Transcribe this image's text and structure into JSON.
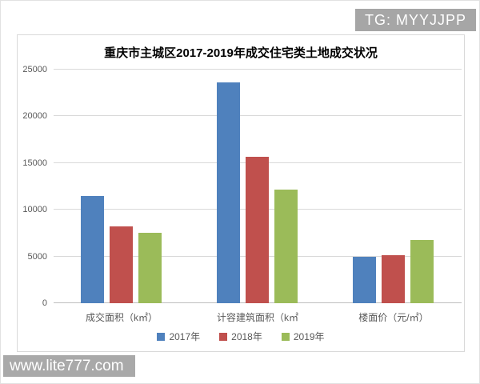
{
  "watermarks": {
    "top_right": "TG: MYYJJPP",
    "bottom_left": "www.lite777.com"
  },
  "chart_data": {
    "type": "bar",
    "title": "重庆市主城区2017-2019年成交住宅类土地成交状况",
    "categories": [
      "成交面积（k㎡）",
      "计容建筑面积（k㎡",
      "楼面价（元/㎡）"
    ],
    "series": [
      {
        "name": "2017年",
        "color": "#4f81bd",
        "values": [
          11500,
          23600,
          4950
        ]
      },
      {
        "name": "2018年",
        "color": "#c0504d",
        "values": [
          8200,
          15650,
          5100
        ]
      },
      {
        "name": "2019年",
        "color": "#9bbb59",
        "values": [
          7550,
          12200,
          6800
        ]
      }
    ],
    "y_ticks": [
      0,
      5000,
      10000,
      15000,
      20000,
      25000
    ],
    "ylim": [
      0,
      25000
    ],
    "grid": true,
    "legend_position": "bottom"
  },
  "colors": {
    "grid": "#d9d9d9",
    "zero_line": "#bfbfbf",
    "axis_text": "#595959",
    "watermark_bg": "#a6a6a6"
  }
}
